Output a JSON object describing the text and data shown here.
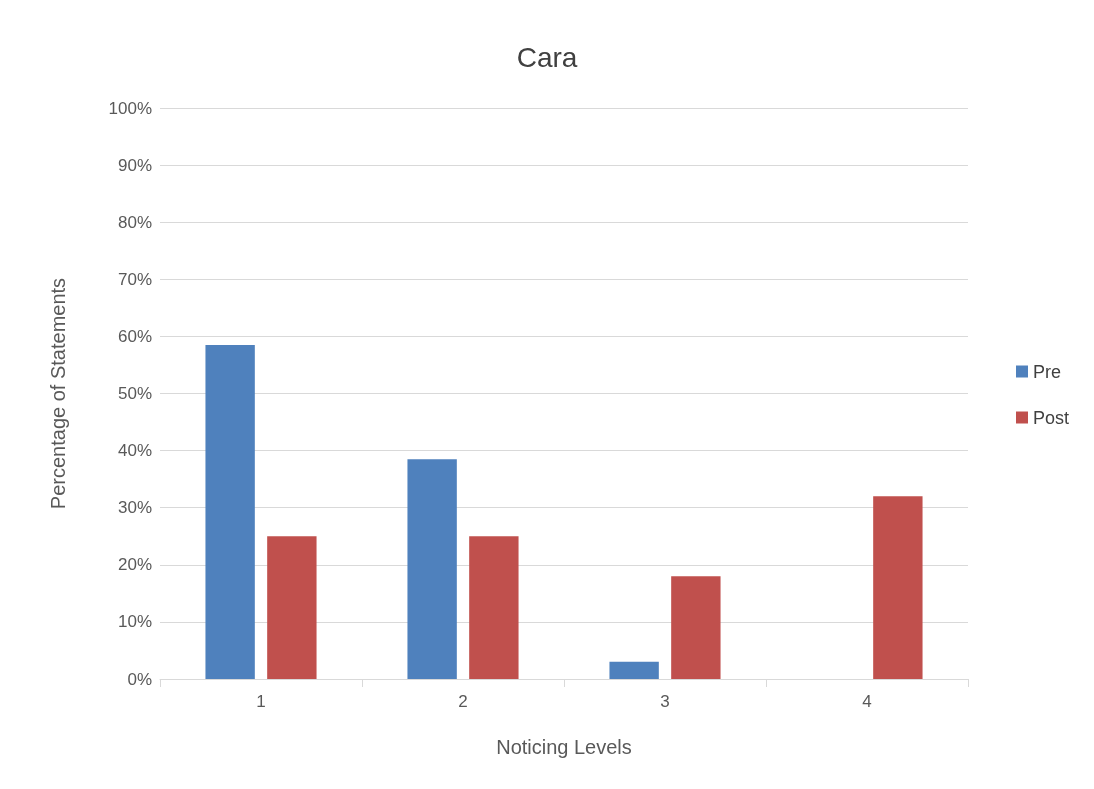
{
  "chart_data": {
    "type": "bar",
    "title": "Cara",
    "xlabel": "Noticing Levels",
    "ylabel": "Percentage of Statements",
    "categories": [
      "1",
      "2",
      "3",
      "4"
    ],
    "series": [
      {
        "name": "Pre",
        "color": "#4f81bd",
        "values": [
          58.5,
          38.5,
          3,
          0
        ]
      },
      {
        "name": "Post",
        "color": "#c0504d",
        "values": [
          25,
          25,
          18,
          32
        ]
      }
    ],
    "ylim": [
      0,
      100
    ],
    "yticks": [
      {
        "value": 0,
        "label": "0%"
      },
      {
        "value": 10,
        "label": "10%"
      },
      {
        "value": 20,
        "label": "20%"
      },
      {
        "value": 30,
        "label": "30%"
      },
      {
        "value": 40,
        "label": "40%"
      },
      {
        "value": 50,
        "label": "50%"
      },
      {
        "value": 60,
        "label": "60%"
      },
      {
        "value": 70,
        "label": "70%"
      },
      {
        "value": 80,
        "label": "80%"
      },
      {
        "value": 90,
        "label": "90%"
      },
      {
        "value": 100,
        "label": "100%"
      }
    ],
    "grid": "y",
    "legend": "right"
  }
}
